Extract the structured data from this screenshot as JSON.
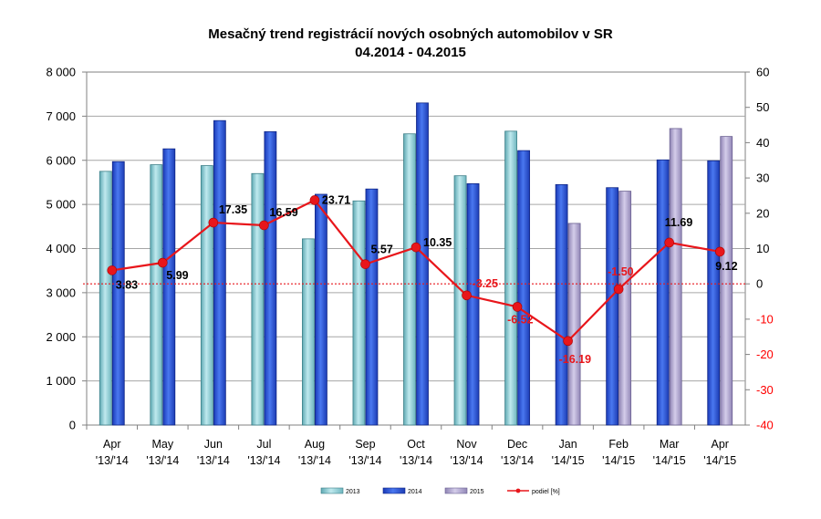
{
  "chart_data": {
    "type": "bar",
    "title": "Mesačný trend registrácií nových osobných automobilov v SR",
    "subtitle": "04.2014 - 04.2015",
    "categories": [
      [
        "Apr",
        "'13/'14"
      ],
      [
        "May",
        "'13/'14"
      ],
      [
        "Jun",
        "'13/'14"
      ],
      [
        "Jul",
        "'13/'14"
      ],
      [
        "Aug",
        "'13/'14"
      ],
      [
        "Sep",
        "'13/'14"
      ],
      [
        "Oct",
        "'13/'14"
      ],
      [
        "Nov",
        "'13/'14"
      ],
      [
        "Dec",
        "'13/'14"
      ],
      [
        "Jan",
        "'14/'15"
      ],
      [
        "Feb",
        "'14/'15"
      ],
      [
        "Mar",
        "'14/'15"
      ],
      [
        "Apr",
        "'14/'15"
      ]
    ],
    "series": [
      {
        "name": "2013",
        "color": "#9fd8de",
        "values": [
          5750,
          5900,
          5880,
          5700,
          4220,
          5080,
          6600,
          5650,
          6660,
          null,
          null,
          null,
          null
        ]
      },
      {
        "name": "2014",
        "color": "#2c56d6",
        "values": [
          5970,
          6260,
          6900,
          6650,
          5230,
          5350,
          7300,
          5470,
          6220,
          5450,
          5380,
          6010,
          5990
        ]
      },
      {
        "name": "2015",
        "color": "#b3a8cf",
        "values": [
          null,
          null,
          null,
          null,
          null,
          null,
          null,
          null,
          null,
          4570,
          5300,
          6720,
          6540
        ]
      }
    ],
    "line": {
      "name": "podiel [%]",
      "color": "#e8161b",
      "axis": "right",
      "values": [
        3.83,
        5.99,
        17.35,
        16.59,
        23.71,
        5.57,
        10.35,
        -3.25,
        -6.52,
        -16.19,
        -1.5,
        11.69,
        9.12
      ],
      "labels": [
        "3.83",
        "5.99",
        "17.35",
        "16.59",
        "23.71",
        "5.57",
        "10.35",
        "-3.25",
        "-6.52",
        "-16.19",
        "-1.50",
        "11.69",
        "9.12"
      ]
    },
    "left_axis": {
      "min": 0,
      "max": 8000,
      "step": 1000,
      "tick_labels": [
        "0",
        "1 000",
        "2 000",
        "3 000",
        "4 000",
        "5 000",
        "6 000",
        "7 000",
        "8 000"
      ]
    },
    "right_axis": {
      "min": -40,
      "max": 60,
      "step": 10,
      "tick_labels": [
        "-40",
        "-30",
        "-20",
        "-10",
        "0",
        "10",
        "20",
        "30",
        "40",
        "50",
        "60"
      ]
    },
    "grid": true,
    "legend_position": "bottom"
  }
}
